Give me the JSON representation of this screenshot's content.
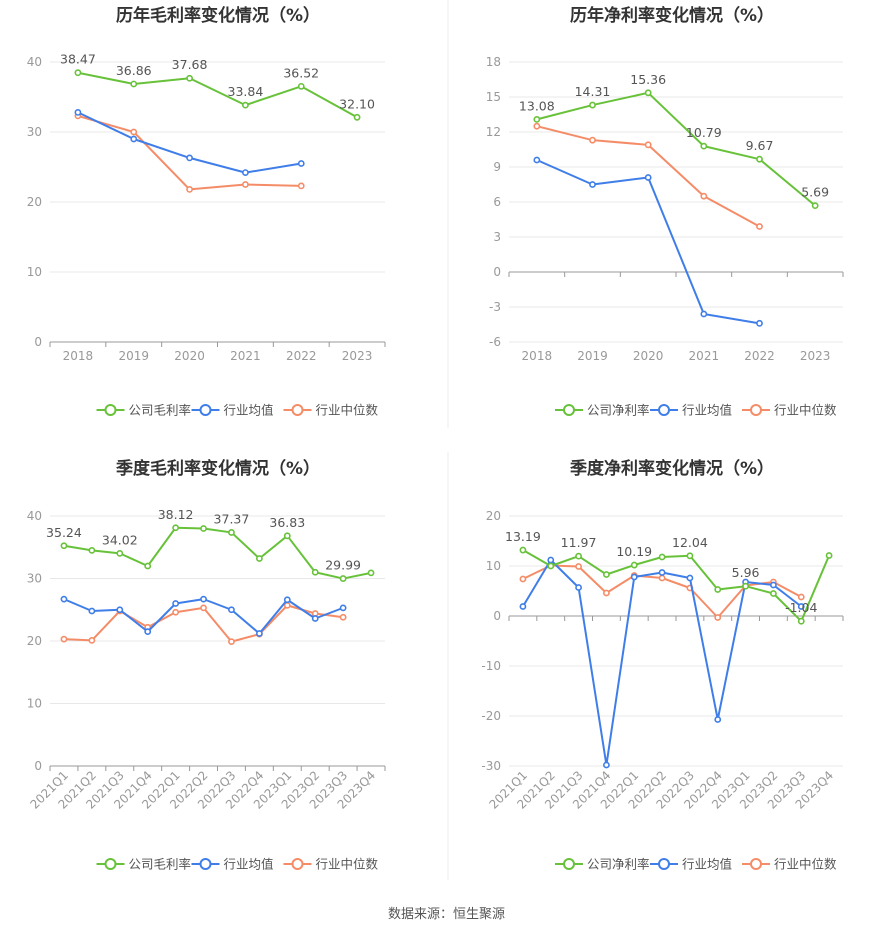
{
  "source": "数据来源：恒生聚源",
  "colors": {
    "company": "#67c23a",
    "avg": "#3f7ee8",
    "median": "#f58c68",
    "axis": "#999999",
    "grid": "#e8e8e8",
    "title": "#333333"
  },
  "chart_data": [
    {
      "id": "annual-gross",
      "type": "line",
      "title": "历年毛利率变化情况（%）",
      "categories": [
        "2018",
        "2019",
        "2020",
        "2021",
        "2022",
        "2023"
      ],
      "ylim": [
        0,
        40
      ],
      "yticks": [
        0,
        10,
        20,
        30,
        40
      ],
      "series": [
        {
          "name": "公司毛利率",
          "values": [
            38.47,
            36.86,
            37.68,
            33.84,
            36.52,
            32.1
          ],
          "labels": [
            "38.47",
            "36.86",
            "37.68",
            "33.84",
            "36.52",
            "32.10"
          ]
        },
        {
          "name": "行业均值",
          "values": [
            32.8,
            29.0,
            26.3,
            24.2,
            25.5,
            null
          ]
        },
        {
          "name": "行业中位数",
          "values": [
            32.3,
            30.0,
            21.8,
            22.5,
            22.3,
            null
          ]
        }
      ]
    },
    {
      "id": "annual-net",
      "type": "line",
      "title": "历年净利率变化情况（%）",
      "categories": [
        "2018",
        "2019",
        "2020",
        "2021",
        "2022",
        "2023"
      ],
      "ylim": [
        -6,
        18
      ],
      "yticks": [
        -6,
        -3,
        0,
        3,
        6,
        9,
        12,
        15,
        18
      ],
      "series": [
        {
          "name": "公司净利率",
          "values": [
            13.08,
            14.31,
            15.36,
            10.79,
            9.67,
            5.69
          ],
          "labels": [
            "13.08",
            "14.31",
            "15.36",
            "10.79",
            "9.67",
            "5.69"
          ]
        },
        {
          "name": "行业均值",
          "values": [
            9.6,
            7.5,
            8.1,
            -3.6,
            -4.4,
            null
          ]
        },
        {
          "name": "行业中位数",
          "values": [
            12.5,
            11.3,
            10.9,
            6.5,
            3.9,
            null
          ]
        }
      ]
    },
    {
      "id": "quarter-gross",
      "type": "line",
      "title": "季度毛利率变化情况（%）",
      "categories": [
        "2021Q1",
        "2021Q2",
        "2021Q3",
        "2021Q4",
        "2022Q1",
        "2022Q2",
        "2022Q3",
        "2022Q4",
        "2023Q1",
        "2023Q2",
        "2023Q3",
        "2023Q4"
      ],
      "ylim": [
        0,
        40
      ],
      "yticks": [
        0,
        10,
        20,
        30,
        40
      ],
      "series": [
        {
          "name": "公司毛利率",
          "values": [
            35.24,
            34.5,
            34.02,
            32.0,
            38.12,
            38.0,
            37.37,
            33.2,
            36.83,
            31.0,
            29.99,
            30.9
          ],
          "labels": [
            "35.24",
            "",
            "34.02",
            "",
            "38.12",
            "",
            "37.37",
            "",
            "36.83",
            "",
            "29.99",
            ""
          ]
        },
        {
          "name": "行业均值",
          "values": [
            26.7,
            24.8,
            25.0,
            21.5,
            26.0,
            26.7,
            25.0,
            21.2,
            26.6,
            23.6,
            25.3,
            null
          ]
        },
        {
          "name": "行业中位数",
          "values": [
            20.3,
            20.1,
            24.8,
            22.2,
            24.6,
            25.3,
            19.9,
            21.1,
            25.7,
            24.4,
            23.8,
            null
          ]
        }
      ]
    },
    {
      "id": "quarter-net",
      "type": "line",
      "title": "季度净利率变化情况（%）",
      "categories": [
        "2021Q1",
        "2021Q2",
        "2021Q3",
        "2021Q4",
        "2022Q1",
        "2022Q2",
        "2022Q3",
        "2022Q4",
        "2023Q1",
        "2023Q2",
        "2023Q3",
        "2023Q4"
      ],
      "ylim": [
        -30,
        20
      ],
      "yticks": [
        -30,
        -20,
        -10,
        0,
        10,
        20
      ],
      "series": [
        {
          "name": "公司净利率",
          "values": [
            13.19,
            10.0,
            11.97,
            8.3,
            10.19,
            11.8,
            12.04,
            5.3,
            5.96,
            4.5,
            -1.04,
            12.1
          ],
          "labels": [
            "13.19",
            "",
            "11.97",
            "",
            "10.19",
            "",
            "12.04",
            "",
            "5.96",
            "",
            "-1.04",
            ""
          ]
        },
        {
          "name": "行业均值",
          "values": [
            1.9,
            11.2,
            5.7,
            -29.8,
            7.8,
            8.7,
            7.6,
            -20.7,
            6.8,
            6.2,
            1.9,
            null
          ]
        },
        {
          "name": "行业中位数",
          "values": [
            7.4,
            10.1,
            9.9,
            4.6,
            8.1,
            7.6,
            5.6,
            -0.3,
            6.1,
            6.8,
            3.8,
            null
          ]
        }
      ]
    }
  ]
}
